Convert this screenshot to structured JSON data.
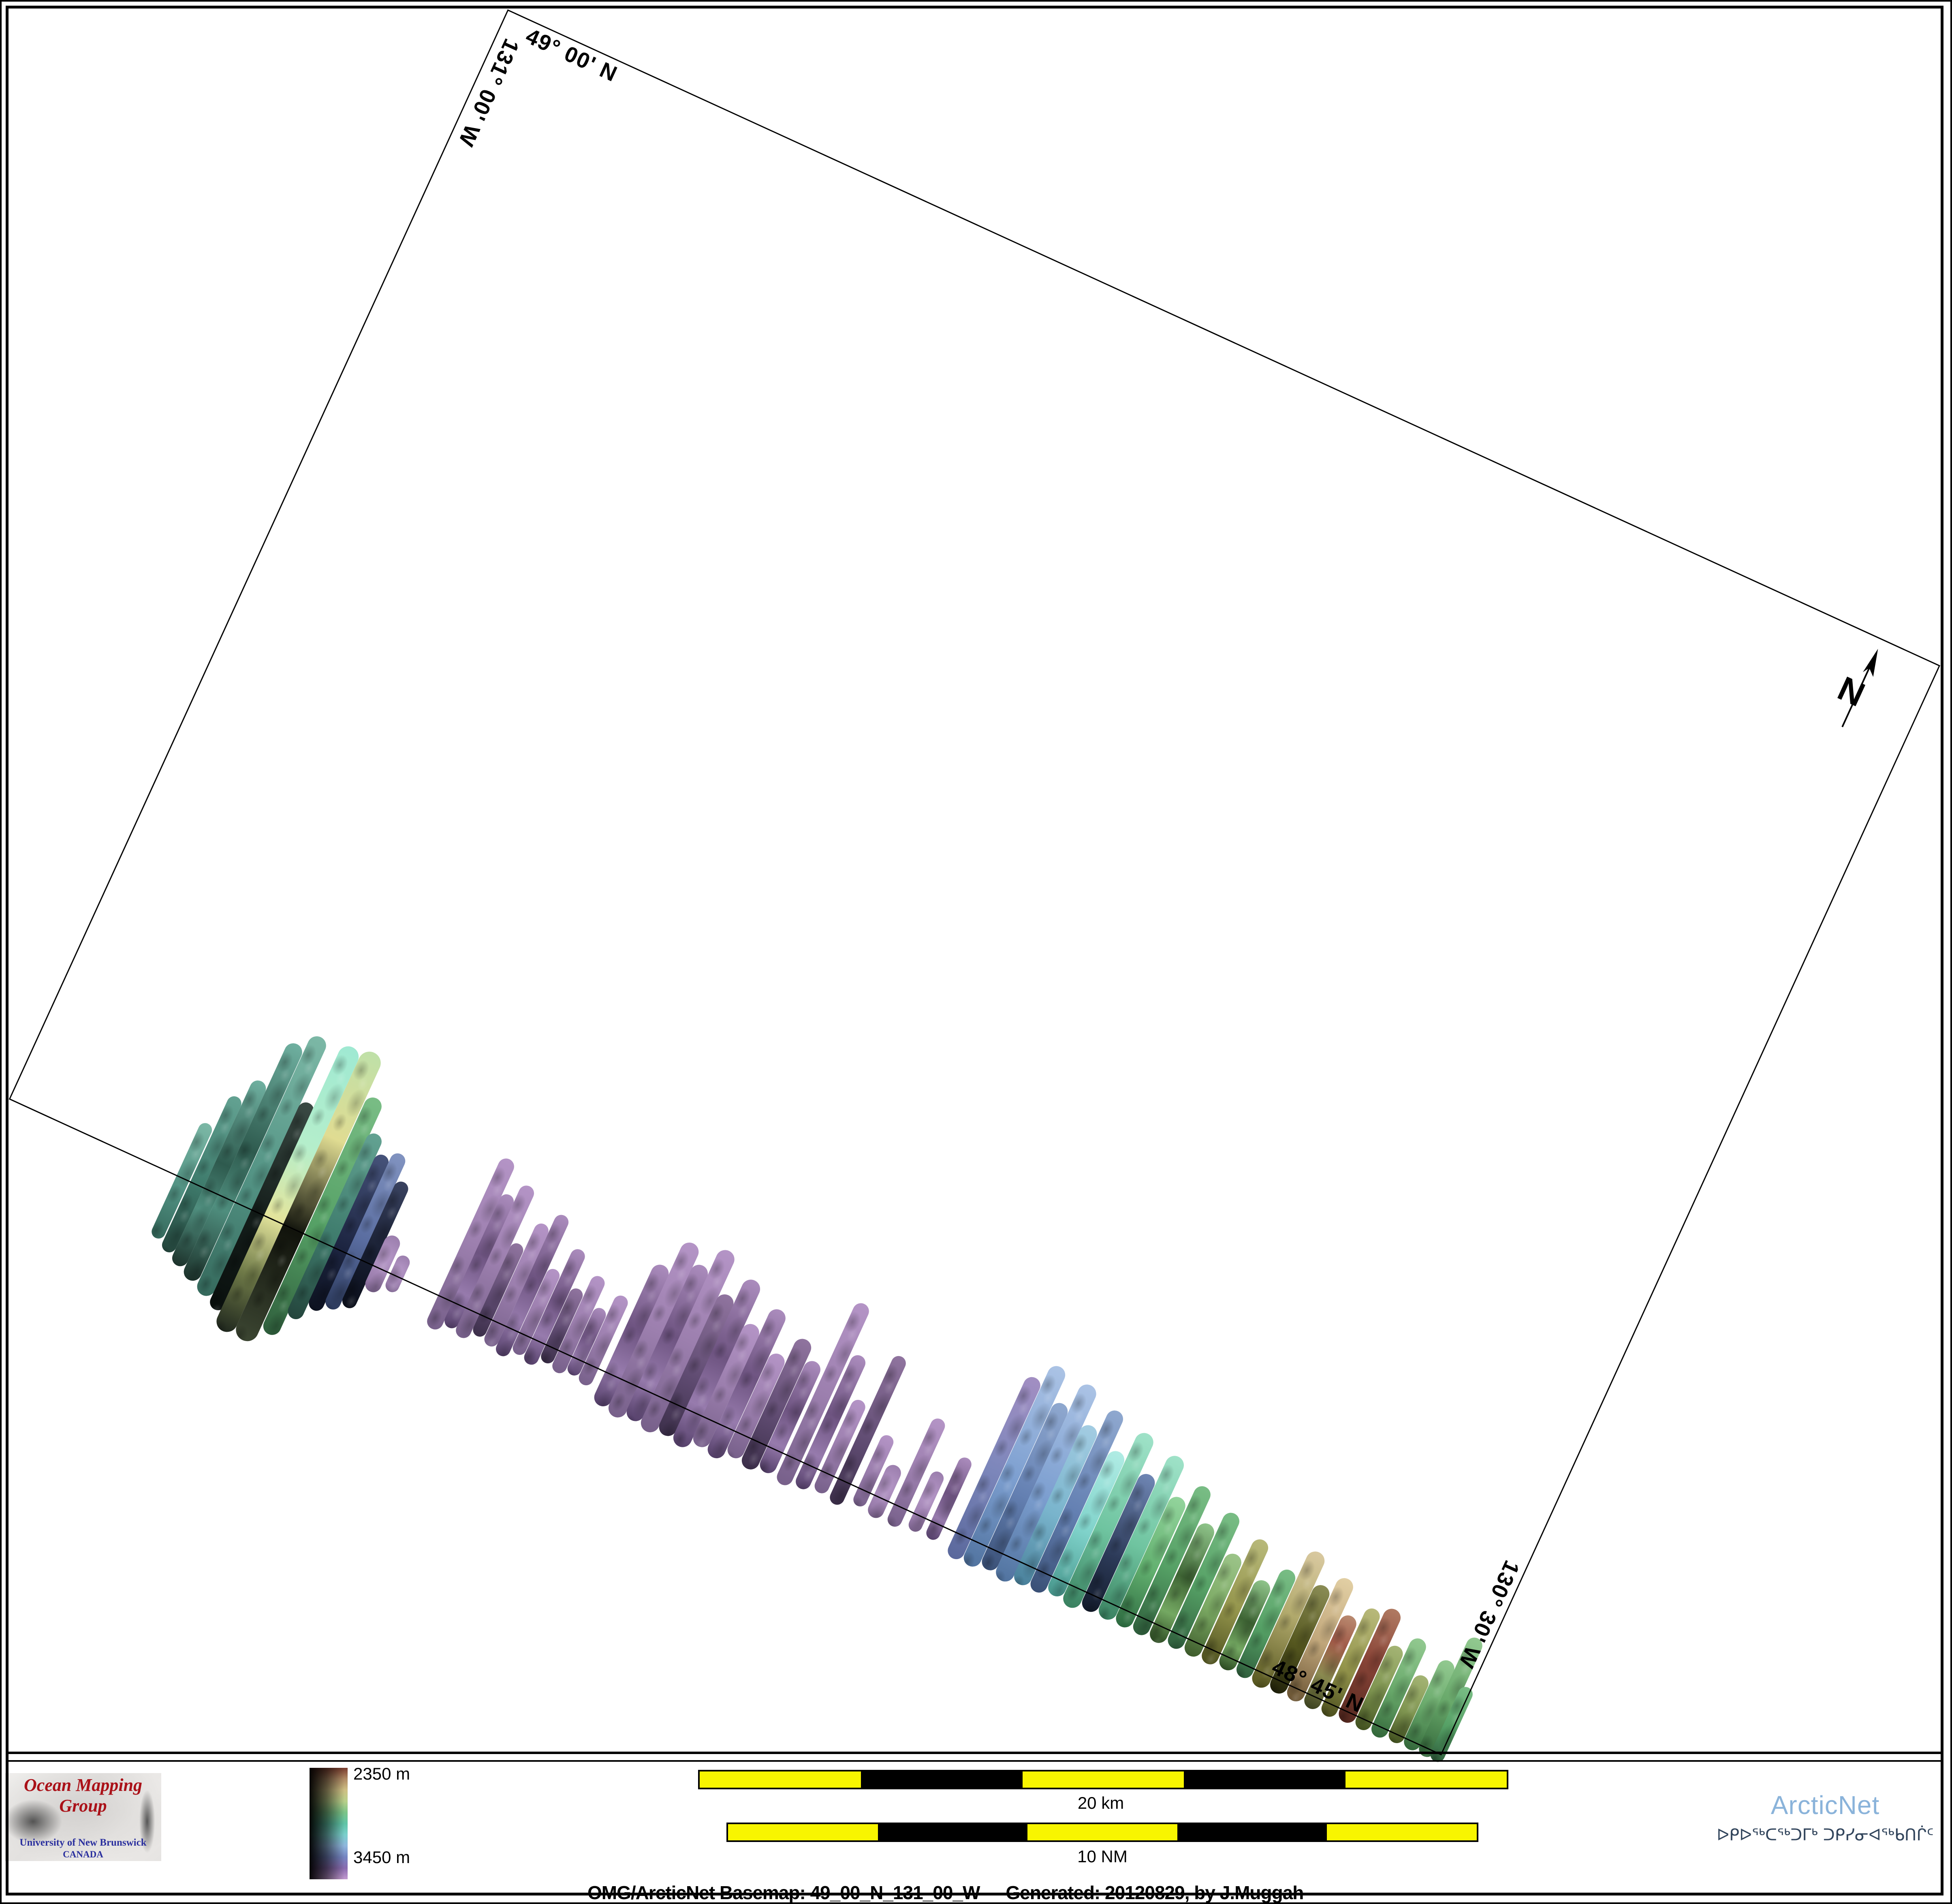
{
  "map": {
    "graticule": {
      "top_lat": "49° 00' N",
      "left_lon": "131° 00' W",
      "bottom_lat": "48° 45' N",
      "right_lon": "130° 30' W"
    },
    "north_label": "N",
    "swatch_styles": {
      "teal": "linear-gradient(180deg,#7cb8a6,#539384 55%,#35695c)",
      "tealD": "linear-gradient(180deg,#63a292,#3f7c6d 55%,#24453c)",
      "tealT": "linear-gradient(180deg,#6fb0a0,#2e5a4e 45%,#4f8e7e 70%,#1d332c)",
      "dark": "linear-gradient(180deg,#3a4a44,#141d1a 55%,#0a100e)",
      "cyanY": "linear-gradient(180deg,#9fe9d2,#b5eecb 35%,#e3e49c 60%,#6f7a48 80%,#20281e)",
      "yellowD": "linear-gradient(180deg,#bfe0a8,#e0dc92 30%,#11130c 62%,#3c4632)",
      "green": "linear-gradient(180deg,#79bd85,#55a065 55%,#2f5e3c)",
      "navy": "linear-gradient(180deg,#46537a,#1c2440 60%,#0d1220)",
      "slate": "linear-gradient(180deg,#8193c0,#5a6da0 55%,#2c3a5c)",
      "navyD": "linear-gradient(180deg,#39425f,#171d30 60%,#0b0f1a)",
      "purp": "linear-gradient(180deg,#b494c6,#9c7fae 50%,#77608a)",
      "purpT": "linear-gradient(180deg,#ab8cbd,#6d5380 45%,#977bad 75%,#55406a)",
      "purpD": "linear-gradient(180deg,#90749f,#5e4a70 60%,#3c2f4a)",
      "purpB": "radial-gradient(circle at 50% 40%,#b698c8,#997cab 70%,#7a628c)",
      "bluePurp": "linear-gradient(180deg,#a28ec2,#7d87bb 50%,#5a689c)",
      "lblue": "linear-gradient(180deg,#abc3e5,#7d9fd0 55%,#51739f)",
      "steel": "linear-gradient(180deg,#8fa8cf,#6480b2 55%,#3a5076)",
      "bcyan": "linear-gradient(180deg,#a3cce2,#79b4cc 55%,#49809a)",
      "cyan": "linear-gradient(180deg,#b0ece4,#7fd2ca 55%,#47968c)",
      "cyanG": "linear-gradient(180deg,#9fe2c8,#6fc4a0 55%,#3a8160)",
      "blueD": "linear-gradient(180deg,#6f86b4,#2c3a58 60%,#131b2b)",
      "greenB": "linear-gradient(180deg,#93d49c,#62b06f 55%,#2d6a40)",
      "greenT": "linear-gradient(180deg,#8fc48a,#3e6434 45%,#74a862 75%,#2c4a22)",
      "greenO": "linear-gradient(180deg,#9cc489,#7aa862 55%,#3e5c2c)",
      "olive": "linear-gradient(180deg,#b8b97a,#94954c 55%,#4c4f1e)",
      "oliveTan": "linear-gradient(180deg,#d9c9a0,#b3ab6e 45%,#56561f)",
      "oliveD": "linear-gradient(180deg,#8a8c55,#55571f 55%,#22230b)",
      "oliveG": "linear-gradient(180deg,#a4b474,#7e9450 55%,#41501f)",
      "tan": "linear-gradient(180deg,#e2cfa4,#c2a87c 50%,#6a5433)",
      "redTop": "linear-gradient(180deg,#b98a70,#a05a48 30%,#8a8a50 65%,#3c4220)",
      "redbr": "linear-gradient(180deg,#b07a62,#8a4538 45%,#54281f)",
      "greenF": "linear-gradient(180deg,#92c990,#68a86a 55%,#33673a)"
    },
    "swaths": [
      [
        472,
        34,
        150,
        160,
        "teal"
      ],
      [
        510,
        36,
        240,
        180,
        "tealD"
      ],
      [
        548,
        40,
        300,
        200,
        "tealT"
      ],
      [
        590,
        44,
        420,
        220,
        "tealT"
      ],
      [
        636,
        46,
        460,
        240,
        "teal"
      ],
      [
        678,
        40,
        300,
        260,
        "dark"
      ],
      [
        718,
        52,
        470,
        300,
        "cyanY"
      ],
      [
        772,
        56,
        480,
        300,
        "yellowD"
      ],
      [
        824,
        44,
        380,
        260,
        "green"
      ],
      [
        862,
        40,
        300,
        200,
        "tealD"
      ],
      [
        900,
        38,
        260,
        160,
        "navy"
      ],
      [
        936,
        38,
        280,
        140,
        "slate"
      ],
      [
        972,
        36,
        220,
        120,
        "navyD"
      ],
      [
        1008,
        40,
        90,
        60,
        "purpB"
      ],
      [
        1052,
        34,
        56,
        40,
        "purpB"
      ],
      [
        1185,
        40,
        380,
        80,
        "purp"
      ],
      [
        1222,
        36,
        300,
        60,
        "purpT"
      ],
      [
        1258,
        38,
        340,
        70,
        "purp"
      ],
      [
        1294,
        34,
        200,
        50,
        "purpD"
      ],
      [
        1330,
        36,
        270,
        60,
        "purp"
      ],
      [
        1366,
        36,
        310,
        70,
        "purpT"
      ],
      [
        1402,
        34,
        180,
        50,
        "purp"
      ],
      [
        1438,
        36,
        250,
        60,
        "purpT"
      ],
      [
        1474,
        34,
        160,
        40,
        "purpD"
      ],
      [
        1510,
        36,
        210,
        50,
        "purp"
      ],
      [
        1546,
        34,
        140,
        40,
        "purpT"
      ],
      [
        1582,
        36,
        190,
        50,
        "purp"
      ],
      [
        1640,
        44,
        300,
        80,
        "purpT"
      ],
      [
        1684,
        46,
        380,
        90,
        "purp"
      ],
      [
        1728,
        44,
        340,
        80,
        "purpT"
      ],
      [
        1772,
        46,
        400,
        90,
        "purp"
      ],
      [
        1816,
        44,
        300,
        80,
        "purpD"
      ],
      [
        1860,
        46,
        360,
        90,
        "purpT"
      ],
      [
        1904,
        44,
        260,
        70,
        "purp"
      ],
      [
        1948,
        44,
        320,
        80,
        "purpT"
      ],
      [
        1992,
        42,
        220,
        60,
        "purp"
      ],
      [
        2036,
        44,
        280,
        70,
        "purpD"
      ],
      [
        2080,
        42,
        240,
        60,
        "purpT"
      ],
      [
        2130,
        40,
        420,
        70,
        "purp"
      ],
      [
        2176,
        38,
        300,
        60,
        "purpT"
      ],
      [
        2222,
        36,
        200,
        50,
        "purp"
      ],
      [
        2268,
        36,
        340,
        60,
        "purpD"
      ],
      [
        2322,
        34,
        150,
        40,
        "purp"
      ],
      [
        2368,
        40,
        90,
        50,
        "purpB"
      ],
      [
        2420,
        36,
        240,
        50,
        "purp"
      ],
      [
        2472,
        34,
        120,
        40,
        "purpB"
      ],
      [
        2520,
        34,
        180,
        40,
        "purpT"
      ],
      [
        2590,
        42,
        430,
        60,
        "bluePurp"
      ],
      [
        2634,
        44,
        480,
        60,
        "lblue"
      ],
      [
        2678,
        42,
        400,
        50,
        "steel"
      ],
      [
        2722,
        46,
        470,
        60,
        "lblue"
      ],
      [
        2766,
        44,
        380,
        50,
        "bcyan"
      ],
      [
        2810,
        42,
        440,
        50,
        "steel"
      ],
      [
        2854,
        44,
        350,
        40,
        "cyan"
      ],
      [
        2900,
        46,
        420,
        50,
        "cyanG"
      ],
      [
        2946,
        44,
        330,
        40,
        "blueD"
      ],
      [
        2992,
        46,
        400,
        40,
        "cyanG"
      ],
      [
        3038,
        44,
        310,
        40,
        "greenB"
      ],
      [
        3084,
        42,
        360,
        40,
        "green"
      ],
      [
        3130,
        44,
        280,
        40,
        "greenT"
      ],
      [
        3176,
        42,
        330,
        35,
        "green"
      ],
      [
        3222,
        44,
        240,
        35,
        "greenO"
      ],
      [
        3268,
        42,
        300,
        35,
        "olive"
      ],
      [
        3314,
        44,
        210,
        30,
        "greenT"
      ],
      [
        3360,
        42,
        260,
        30,
        "green"
      ],
      [
        3406,
        46,
        330,
        35,
        "oliveTan"
      ],
      [
        3452,
        44,
        260,
        30,
        "oliveD"
      ],
      [
        3498,
        44,
        300,
        30,
        "tan"
      ],
      [
        3544,
        42,
        220,
        30,
        "redTop"
      ],
      [
        3590,
        40,
        260,
        30,
        "olive"
      ],
      [
        3636,
        44,
        280,
        25,
        "redbr"
      ],
      [
        3680,
        40,
        200,
        25,
        "oliveG"
      ],
      [
        3724,
        42,
        240,
        25,
        "greenF"
      ],
      [
        3768,
        40,
        160,
        20,
        "oliveG"
      ],
      [
        3810,
        42,
        220,
        20,
        "greenF"
      ],
      [
        3850,
        40,
        300,
        20,
        "greenF"
      ],
      [
        3880,
        36,
        180,
        20,
        "green"
      ]
    ]
  },
  "footer": {
    "logo": {
      "title": "Ocean Mapping Group",
      "subtitle": "University of New Brunswick",
      "country": "CANADA"
    },
    "colorbar": {
      "top_label": "2350 m",
      "bottom_label": "3450 m",
      "stops": [
        "#7a3c2e",
        "#b08a64",
        "#cfc084",
        "#b9d08a",
        "#7cc488",
        "#5fc4a6",
        "#7ad0cc",
        "#8fb6dd",
        "#7585c2",
        "#8a6cb0",
        "#c39ad0"
      ]
    },
    "scalebars": [
      {
        "label": "20 km"
      },
      {
        "label": "10 NM"
      }
    ],
    "caption": {
      "left": "OMG/ArcticNet Basemap: 49_00_N_131_00_W",
      "right": "Generated: 20120829, by J.Muggah"
    },
    "arcticnet": {
      "name": "ArcticNet",
      "inuktitut": "ᐅᑭᐅᖅᑕᖅᑐᒥᒃ ᑐᑭᓯᓂᐊᖅᑲᑎᒌᑦ",
      "name_color": "#8ab3da",
      "text_color": "#32455c"
    }
  },
  "chart_data": {
    "type": "heatmap",
    "title": "OMG/ArcticNet Basemap 49_00_N_131_00_W",
    "depth_scale_m": {
      "min": 2350,
      "max": 3450
    },
    "extent": {
      "north": "49° 00' N",
      "south": "48° 45' N",
      "west": "131° 00' W",
      "east": "130° 30' W"
    },
    "scale_bar_km": 20,
    "scale_bar_nm": 10
  }
}
